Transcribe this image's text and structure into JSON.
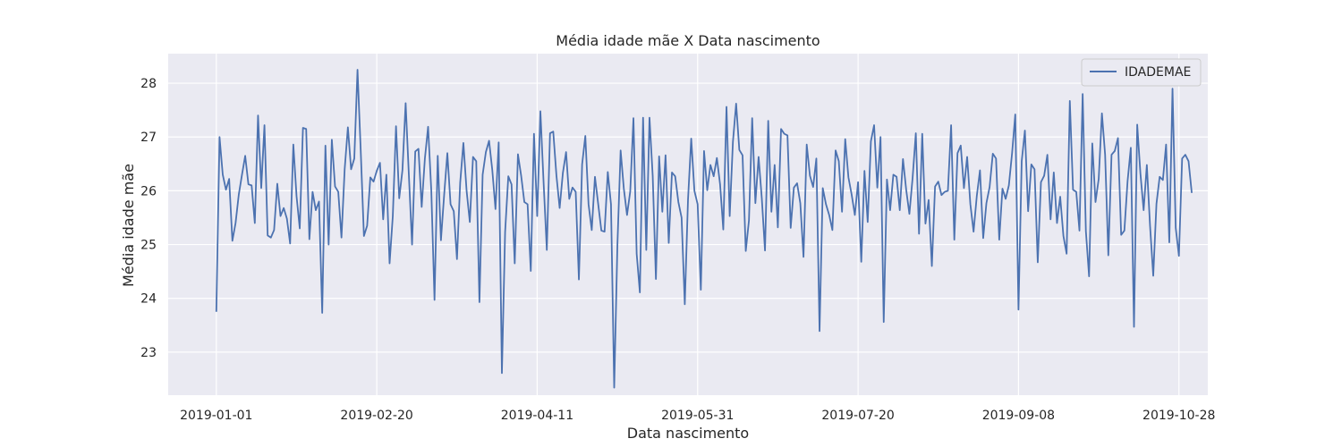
{
  "chart_data": {
    "type": "line",
    "title": "Média idade mãe X Data nascimento",
    "xlabel": "Data nascimento",
    "ylabel": "Média idade mãe",
    "grid": true,
    "legend_position": "top-right",
    "x_start": "2019-01-01",
    "x_ticks": [
      "2019-01-01",
      "2019-02-20",
      "2019-04-11",
      "2019-05-31",
      "2019-07-20",
      "2019-09-08",
      "2019-10-28"
    ],
    "y_ticks": [
      23,
      24,
      25,
      26,
      27,
      28
    ],
    "xlim": [
      "2018-12-17",
      "2019-11-06"
    ],
    "ylim": [
      22.2,
      28.55
    ],
    "series": [
      {
        "name": "IDADEMAE",
        "color": "#4c72b0",
        "values": [
          23.75,
          27.0,
          26.3,
          26.02,
          26.22,
          25.07,
          25.4,
          25.93,
          26.3,
          26.65,
          26.12,
          26.1,
          25.4,
          27.4,
          26.05,
          27.22,
          25.17,
          25.13,
          25.27,
          26.13,
          25.53,
          25.68,
          25.48,
          25.02,
          26.86,
          25.9,
          25.3,
          27.17,
          27.15,
          25.1,
          25.98,
          25.64,
          25.8,
          23.73,
          26.84,
          25.0,
          26.95,
          26.08,
          25.98,
          25.13,
          26.4,
          27.18,
          26.4,
          26.6,
          28.25,
          26.75,
          25.16,
          25.35,
          26.25,
          26.17,
          26.37,
          26.52,
          25.47,
          26.3,
          24.65,
          25.53,
          27.2,
          25.86,
          26.38,
          27.63,
          26.3,
          25.0,
          26.73,
          26.78,
          25.7,
          26.6,
          27.19,
          26.0,
          23.97,
          26.65,
          25.08,
          25.92,
          26.7,
          25.75,
          25.62,
          24.73,
          26.15,
          26.89,
          26.0,
          25.42,
          26.63,
          26.55,
          23.93,
          26.3,
          26.72,
          26.93,
          26.39,
          25.66,
          26.9,
          22.61,
          25.23,
          26.27,
          26.12,
          24.65,
          26.68,
          26.28,
          25.79,
          25.75,
          24.51,
          27.06,
          25.53,
          27.48,
          26.15,
          24.9,
          27.07,
          27.1,
          26.28,
          25.68,
          26.33,
          26.72,
          25.85,
          26.06,
          25.98,
          24.35,
          26.49,
          27.02,
          25.75,
          25.27,
          26.26,
          25.76,
          25.26,
          25.24,
          26.35,
          25.75,
          22.34,
          24.99,
          26.75,
          26.04,
          25.55,
          25.99,
          27.35,
          24.83,
          24.11,
          27.36,
          24.9,
          27.36,
          26.28,
          24.36,
          26.64,
          25.61,
          26.66,
          25.03,
          26.34,
          26.27,
          25.79,
          25.5,
          23.89,
          25.83,
          26.97,
          26.0,
          25.75,
          24.16,
          26.74,
          26.01,
          26.48,
          26.27,
          26.61,
          26.12,
          25.28,
          27.56,
          25.53,
          26.91,
          27.62,
          26.76,
          26.66,
          24.88,
          25.45,
          27.35,
          25.77,
          26.63,
          25.86,
          24.89,
          27.3,
          25.61,
          26.48,
          25.32,
          27.15,
          27.06,
          27.03,
          25.31,
          26.06,
          26.14,
          25.77,
          24.77,
          26.86,
          26.28,
          26.07,
          26.6,
          23.39,
          26.05,
          25.75,
          25.55,
          25.27,
          26.75,
          26.55,
          25.61,
          26.96,
          26.25,
          25.93,
          25.55,
          26.16,
          24.68,
          26.37,
          25.42,
          26.92,
          27.22,
          26.06,
          27.0,
          23.56,
          26.21,
          25.64,
          26.3,
          26.26,
          25.64,
          26.59,
          26.02,
          25.57,
          26.24,
          27.07,
          25.2,
          27.06,
          25.39,
          25.83,
          24.6,
          26.08,
          26.17,
          25.92,
          25.98,
          26.0,
          27.22,
          25.09,
          26.7,
          26.84,
          26.05,
          26.63,
          25.75,
          25.24,
          25.9,
          26.38,
          25.12,
          25.77,
          26.07,
          26.69,
          26.6,
          25.09,
          26.04,
          25.85,
          26.1,
          26.7,
          27.42,
          23.79,
          26.55,
          27.12,
          25.62,
          26.49,
          26.4,
          24.67,
          26.16,
          26.28,
          26.67,
          25.47,
          26.34,
          25.4,
          25.89,
          25.16,
          24.83,
          27.67,
          26.02,
          25.98,
          25.26,
          27.8,
          25.25,
          24.41,
          26.88,
          25.79,
          26.22,
          27.44,
          26.67,
          24.8,
          26.67,
          26.74,
          26.98,
          25.18,
          25.26,
          26.18,
          26.8,
          23.47,
          27.23,
          26.32,
          25.64,
          26.48,
          25.35,
          24.42,
          25.76,
          26.26,
          26.2,
          26.86,
          25.04,
          27.9,
          25.31,
          24.79,
          26.6,
          26.67,
          26.55,
          25.96
        ]
      }
    ]
  }
}
